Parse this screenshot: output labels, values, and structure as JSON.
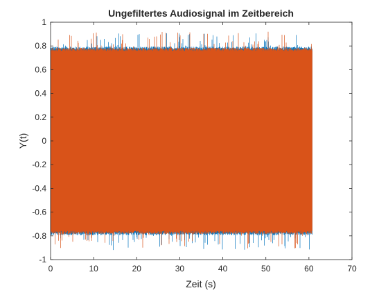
{
  "chart_data": {
    "type": "line",
    "title": "Ungefiltertes Audiosignal im Zeitbereich",
    "xlabel": "Zeit (s)",
    "ylabel": "Y(t)",
    "xlim": [
      0,
      70
    ],
    "ylim": [
      -1,
      1
    ],
    "xticks": [
      0,
      10,
      20,
      30,
      40,
      50,
      60,
      70
    ],
    "xtick_labels": [
      "0",
      "10",
      "20",
      "30",
      "40",
      "50",
      "60",
      "70"
    ],
    "yticks": [
      -1,
      -0.8,
      -0.6,
      -0.4,
      -0.2,
      0,
      0.2,
      0.4,
      0.6,
      0.8,
      1
    ],
    "ytick_labels": [
      "-1",
      "-0.8",
      "-0.6",
      "-0.4",
      "-0.2",
      "0",
      "0.2",
      "0.4",
      "0.6",
      "0.8",
      "1"
    ],
    "grid": false,
    "series": [
      {
        "color": "#0072BD",
        "x_range": [
          0,
          60.8
        ],
        "typical_amplitude": 0.78,
        "max_peak": 0.91,
        "min_peak": -0.92
      },
      {
        "color": "#D95319",
        "x_range": [
          0,
          60.8
        ],
        "typical_amplitude": 0.77,
        "max_peak": 0.92,
        "min_peak": -0.91
      }
    ]
  }
}
